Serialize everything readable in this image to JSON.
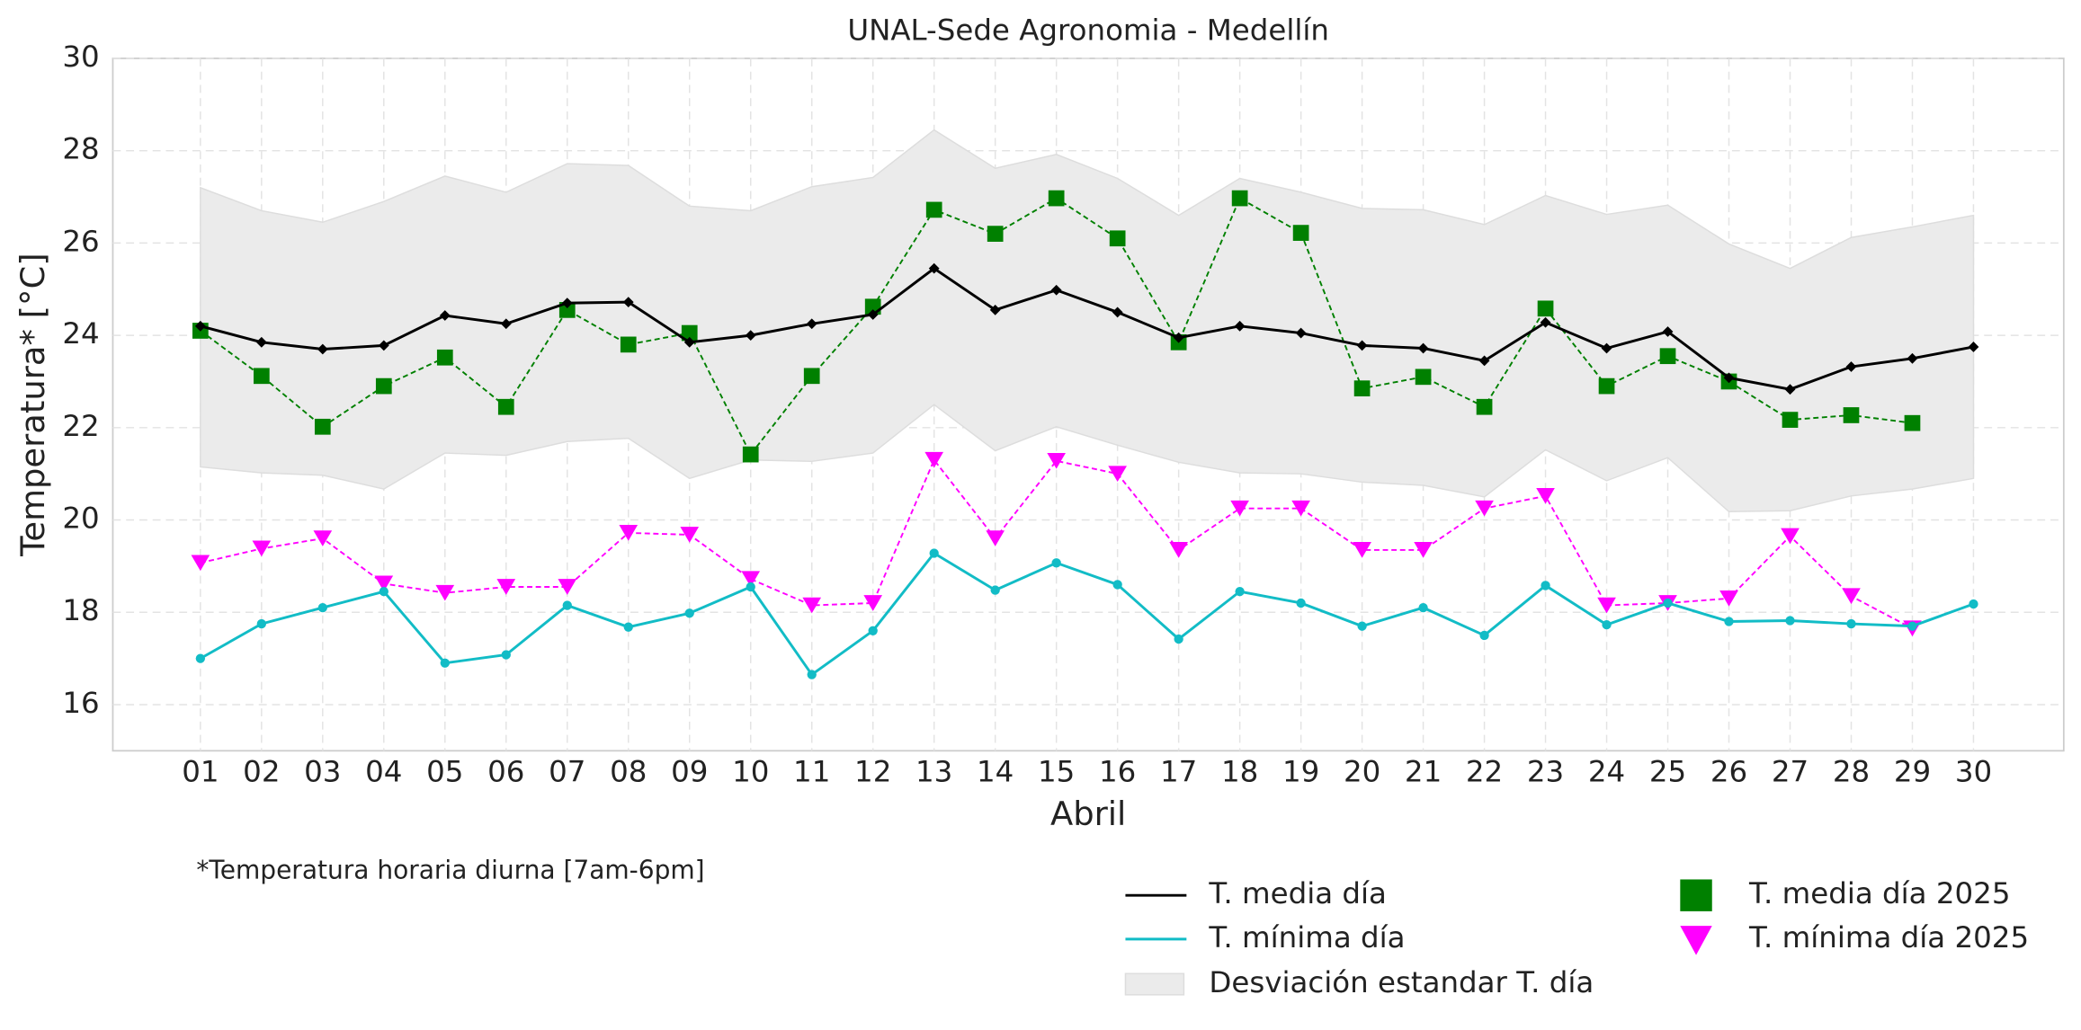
{
  "chart_data": {
    "type": "line",
    "title": "UNAL-Sede Agronomia - Medellín",
    "y_label": "Temperatura* [°C]",
    "x_label": "Abril",
    "note": "*Temperatura horaria diurna [7am-6pm]",
    "categories": [
      "01",
      "02",
      "03",
      "04",
      "05",
      "06",
      "07",
      "08",
      "09",
      "10",
      "11",
      "12",
      "13",
      "14",
      "15",
      "16",
      "17",
      "18",
      "19",
      "20",
      "21",
      "22",
      "23",
      "24",
      "25",
      "26",
      "27",
      "28",
      "29",
      "30"
    ],
    "ylim": [
      15,
      30
    ],
    "yticks": [
      16,
      18,
      20,
      22,
      24,
      26,
      28,
      30
    ],
    "grid": true,
    "series": [
      {
        "name": "T. media día",
        "color": "#000000",
        "style": "solid",
        "marker": "diamond",
        "values": [
          24.2,
          23.85,
          23.7,
          23.78,
          24.43,
          24.25,
          24.7,
          24.72,
          23.85,
          24.0,
          24.25,
          24.45,
          25.45,
          24.55,
          24.98,
          24.5,
          23.95,
          24.2,
          24.05,
          23.78,
          23.72,
          23.45,
          24.28,
          23.72,
          24.08,
          23.08,
          22.83,
          23.32,
          23.5,
          23.75
        ]
      },
      {
        "name": "T. mínima día",
        "color": "#12bcc6",
        "style": "solid",
        "marker": "circle",
        "values": [
          17.0,
          17.75,
          18.1,
          18.45,
          16.9,
          17.08,
          18.15,
          17.68,
          17.98,
          18.55,
          16.65,
          17.6,
          19.28,
          18.48,
          19.07,
          18.6,
          17.42,
          18.45,
          18.2,
          17.7,
          18.1,
          17.5,
          18.58,
          17.73,
          18.2,
          17.8,
          17.82,
          17.75,
          17.7,
          18.18
        ]
      },
      {
        "name": "Desviación estandar T. día",
        "color": "#ebebeb",
        "style": "band",
        "upper": [
          27.2,
          26.7,
          26.45,
          26.9,
          27.45,
          27.1,
          27.72,
          27.68,
          26.8,
          26.7,
          27.22,
          27.42,
          28.45,
          27.62,
          27.92,
          27.4,
          26.6,
          27.4,
          27.1,
          26.75,
          26.72,
          26.4,
          27.03,
          26.62,
          26.82,
          25.98,
          25.45,
          26.12,
          26.35,
          26.6
        ],
        "lower": [
          21.15,
          21.02,
          20.97,
          20.67,
          21.45,
          21.4,
          21.7,
          21.77,
          20.9,
          21.3,
          21.27,
          21.45,
          22.5,
          21.5,
          22.02,
          21.62,
          21.25,
          21.02,
          21.0,
          20.82,
          20.75,
          20.5,
          21.52,
          20.85,
          21.35,
          20.18,
          20.2,
          20.52,
          20.67,
          20.9
        ]
      },
      {
        "name": "T. media día 2025",
        "color": "#008000",
        "style": "dashed",
        "marker": "square",
        "values": [
          24.1,
          23.12,
          22.02,
          22.9,
          23.52,
          22.45,
          24.55,
          23.8,
          24.05,
          21.42,
          23.12,
          24.62,
          26.72,
          26.2,
          26.97,
          26.1,
          23.85,
          26.97,
          26.22,
          22.85,
          23.1,
          22.45,
          24.58,
          22.9,
          23.55,
          23.0,
          22.17,
          22.27,
          22.1,
          null
        ]
      },
      {
        "name": "T. mínima día 2025",
        "color": "#ff00ff",
        "style": "dashed",
        "marker": "triangle",
        "values": [
          19.07,
          19.38,
          19.6,
          18.62,
          18.42,
          18.55,
          18.55,
          19.72,
          19.68,
          18.72,
          18.15,
          18.2,
          21.3,
          19.6,
          21.28,
          21.0,
          19.35,
          20.25,
          20.25,
          19.35,
          19.35,
          20.25,
          20.52,
          18.15,
          18.2,
          18.3,
          19.65,
          18.35,
          17.65,
          null
        ]
      }
    ]
  }
}
